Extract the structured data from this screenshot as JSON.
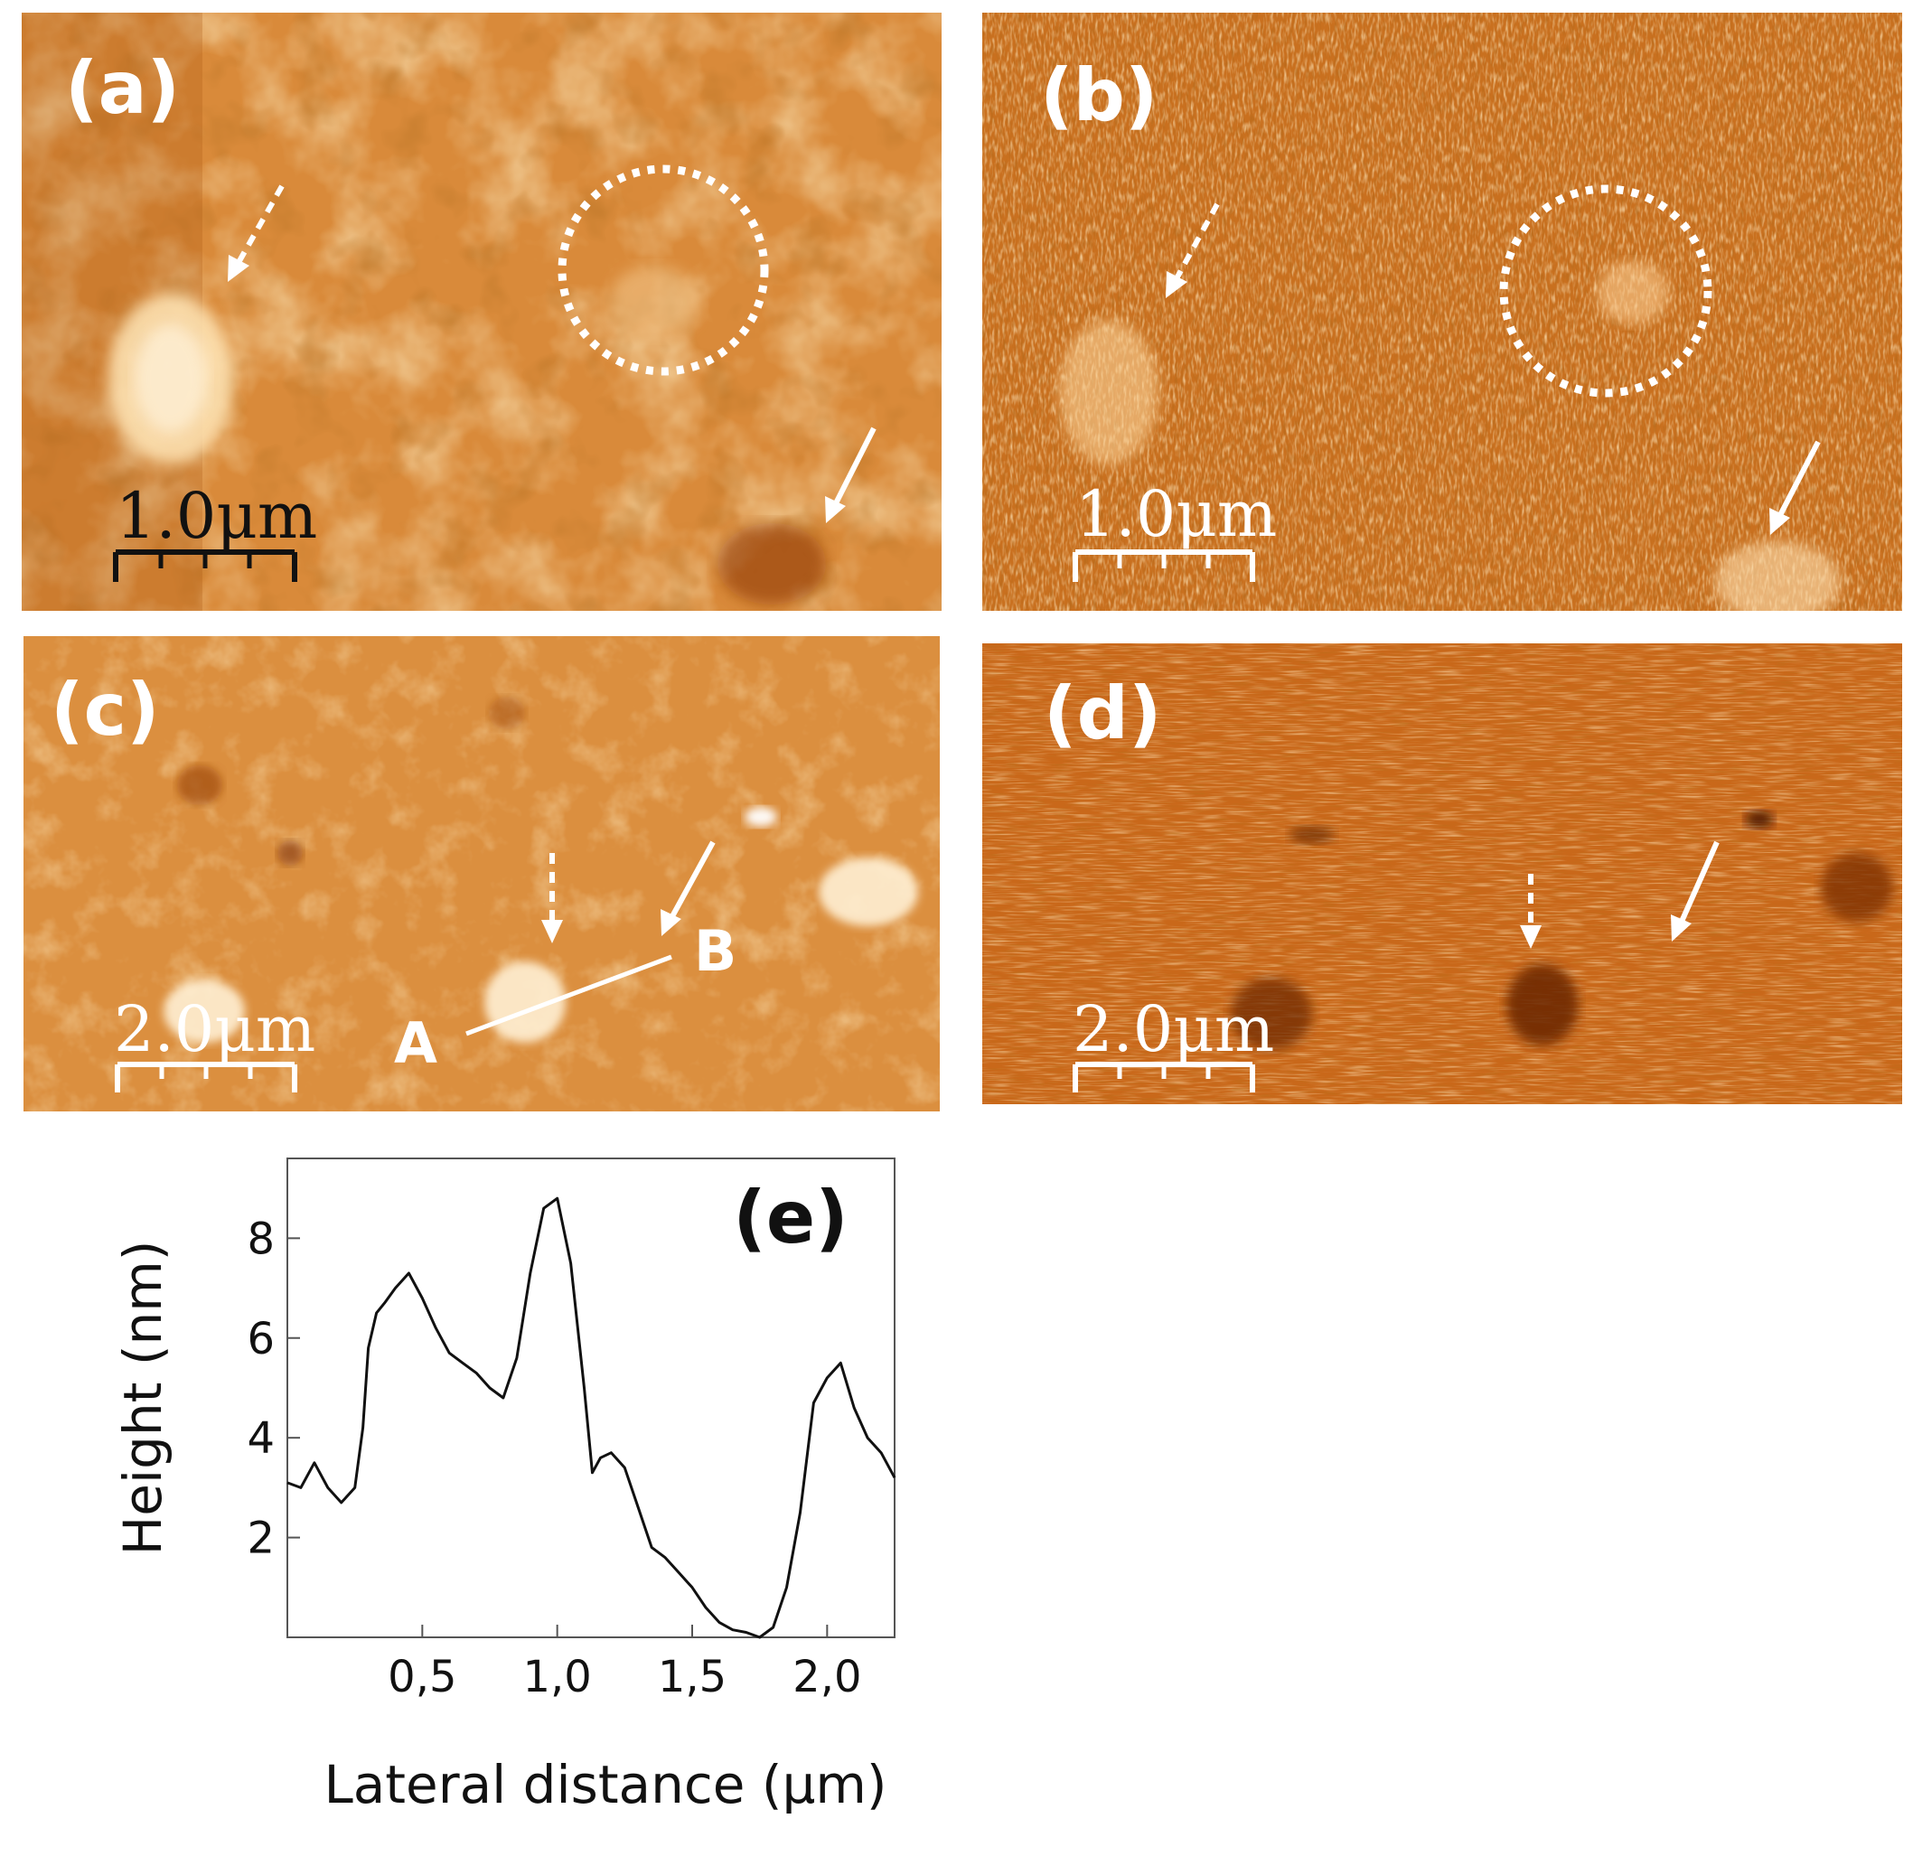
{
  "panels": {
    "a": {
      "label": "(a)",
      "scale_bar": "1.0μm"
    },
    "b": {
      "label": "(b)",
      "scale_bar": "1.0μm"
    },
    "c": {
      "label": "(c)",
      "scale_bar": "2.0μm",
      "point_a": "A",
      "point_b": "B"
    },
    "d": {
      "label": "(d)",
      "scale_bar": "2.0μm"
    }
  },
  "colors": {
    "afm_base": "#d98a3a",
    "afm_bright": "#ffe6b8",
    "afm_dark": "#8a3a08",
    "annotation": "#ffffff",
    "scale_bar_dark": "#111111"
  },
  "chart_data": {
    "type": "line",
    "label": "(e)",
    "xlabel": "Lateral distance (μm)",
    "ylabel": "Height (nm)",
    "xlim": [
      0,
      2.25
    ],
    "ylim": [
      0,
      9.6
    ],
    "xticks": [
      0.5,
      1.0,
      1.5,
      2.0
    ],
    "xtick_labels": [
      "0,5",
      "1,0",
      "1,5",
      "2,0"
    ],
    "yticks": [
      2,
      4,
      6,
      8
    ],
    "ytick_labels": [
      "2",
      "4",
      "6",
      "8"
    ],
    "series": [
      {
        "x": [
          0.0,
          0.05,
          0.1,
          0.15,
          0.2,
          0.25,
          0.28,
          0.3,
          0.33,
          0.36,
          0.4,
          0.45,
          0.5,
          0.55,
          0.6,
          0.65,
          0.7,
          0.75,
          0.8,
          0.85,
          0.9,
          0.95,
          1.0,
          1.05,
          1.1,
          1.13,
          1.16,
          1.2,
          1.25,
          1.3,
          1.35,
          1.4,
          1.45,
          1.5,
          1.55,
          1.6,
          1.65,
          1.7,
          1.75,
          1.8,
          1.85,
          1.9,
          1.95,
          2.0,
          2.05,
          2.1,
          2.15,
          2.2,
          2.25
        ],
        "y": [
          3.1,
          3.0,
          3.5,
          3.0,
          2.7,
          3.0,
          4.2,
          5.8,
          6.5,
          6.7,
          7.0,
          7.3,
          6.8,
          6.2,
          5.7,
          5.5,
          5.3,
          5.0,
          4.8,
          5.6,
          7.3,
          8.6,
          8.8,
          7.5,
          5.0,
          3.3,
          3.6,
          3.7,
          3.4,
          2.6,
          1.8,
          1.6,
          1.3,
          1.0,
          0.6,
          0.3,
          0.15,
          0.1,
          0.0,
          0.2,
          1.0,
          2.5,
          4.7,
          5.2,
          5.5,
          4.6,
          4.0,
          3.7,
          3.2
        ]
      }
    ]
  }
}
